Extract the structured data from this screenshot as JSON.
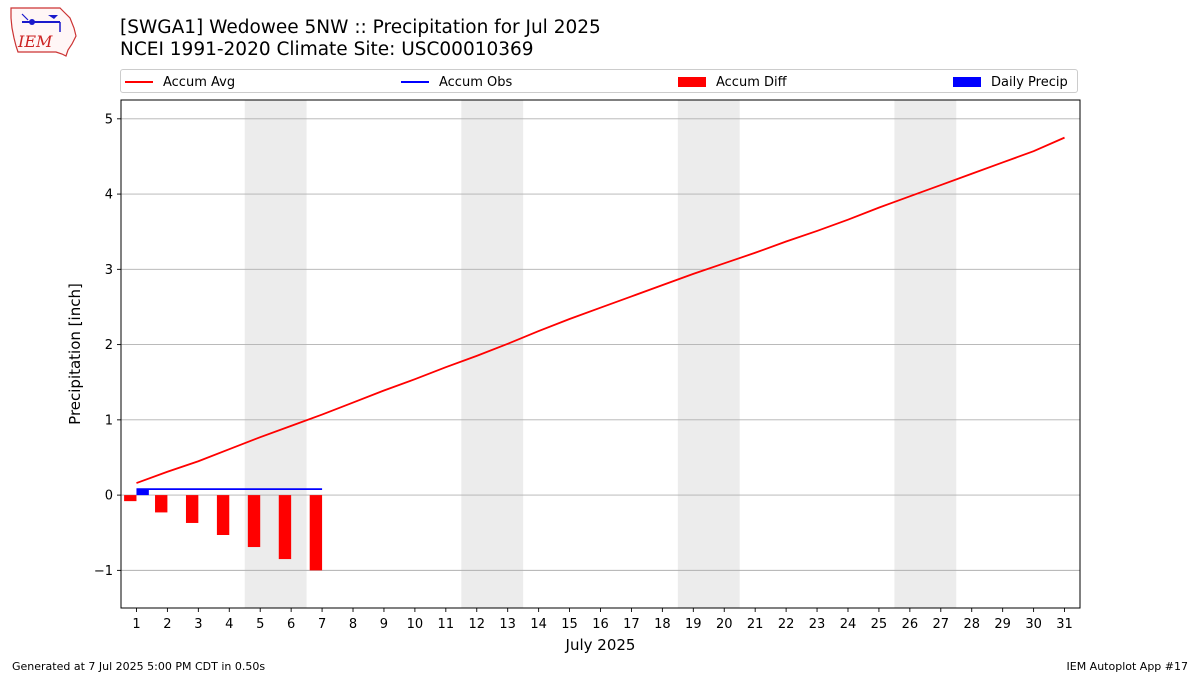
{
  "header": {
    "logo_text": "IEM",
    "title_line1": "[SWGA1] Wedowee 5NW :: Precipitation for Jul 2025",
    "title_line2": "NCEI 1991-2020 Climate Site: USC00010369"
  },
  "legend": {
    "accum_avg": "Accum Avg",
    "accum_obs": "Accum Obs",
    "accum_diff": "Accum Diff",
    "daily_precip": "Daily Precip"
  },
  "colors": {
    "accum_avg": "#ff0000",
    "accum_obs": "#0000ff",
    "accum_diff": "#ff0000",
    "daily_precip": "#0000ff",
    "weekend_band": "#ececec",
    "grid": "#b0b0b0"
  },
  "footer": {
    "generated": "Generated at 7 Jul 2025 5:00 PM CDT in 0.50s",
    "app": "IEM Autoplot App #17"
  },
  "chart_data": {
    "type": "bar",
    "xlabel": "July 2025",
    "ylabel": "Precipitation [inch]",
    "xlim": [
      0.5,
      31.5
    ],
    "ylim": [
      -1.5,
      5.25
    ],
    "yticks": [
      -1,
      0,
      1,
      2,
      3,
      4,
      5
    ],
    "ytick_labels": [
      "−1",
      "0",
      "1",
      "2",
      "3",
      "4",
      "5"
    ],
    "grid": "y",
    "legend_placement": "top",
    "days": [
      1,
      2,
      3,
      4,
      5,
      6,
      7,
      8,
      9,
      10,
      11,
      12,
      13,
      14,
      15,
      16,
      17,
      18,
      19,
      20,
      21,
      22,
      23,
      24,
      25,
      26,
      27,
      28,
      29,
      30,
      31
    ],
    "weekend_spans": [
      [
        4.5,
        6.5
      ],
      [
        11.5,
        13.5
      ],
      [
        18.5,
        20.5
      ],
      [
        25.5,
        27.5
      ]
    ],
    "series": [
      {
        "name": "Accum Avg",
        "kind": "line",
        "x": [
          1,
          2,
          3,
          4,
          5,
          6,
          7,
          8,
          9,
          10,
          11,
          12,
          13,
          14,
          15,
          16,
          17,
          18,
          19,
          20,
          21,
          22,
          23,
          24,
          25,
          26,
          27,
          28,
          29,
          30,
          31
        ],
        "values": [
          0.16,
          0.31,
          0.45,
          0.61,
          0.77,
          0.92,
          1.07,
          1.23,
          1.39,
          1.54,
          1.7,
          1.85,
          2.01,
          2.18,
          2.34,
          2.49,
          2.64,
          2.79,
          2.94,
          3.08,
          3.22,
          3.37,
          3.51,
          3.66,
          3.82,
          3.97,
          4.12,
          4.27,
          4.42,
          4.57,
          4.75
        ]
      },
      {
        "name": "Accum Obs",
        "kind": "line",
        "x": [
          1,
          2,
          3,
          4,
          5,
          6,
          7
        ],
        "values": [
          0.08,
          0.08,
          0.08,
          0.08,
          0.08,
          0.08,
          0.08
        ]
      },
      {
        "name": "Accum Diff",
        "kind": "bar",
        "x": [
          1,
          2,
          3,
          4,
          5,
          6,
          7
        ],
        "values": [
          -0.08,
          -0.23,
          -0.37,
          -0.53,
          -0.69,
          -0.85,
          -1.0
        ]
      },
      {
        "name": "Daily Precip",
        "kind": "bar",
        "x": [
          1,
          2,
          3,
          4,
          5,
          6,
          7
        ],
        "values": [
          0.08,
          0,
          0,
          0,
          0,
          0,
          0
        ]
      }
    ]
  }
}
